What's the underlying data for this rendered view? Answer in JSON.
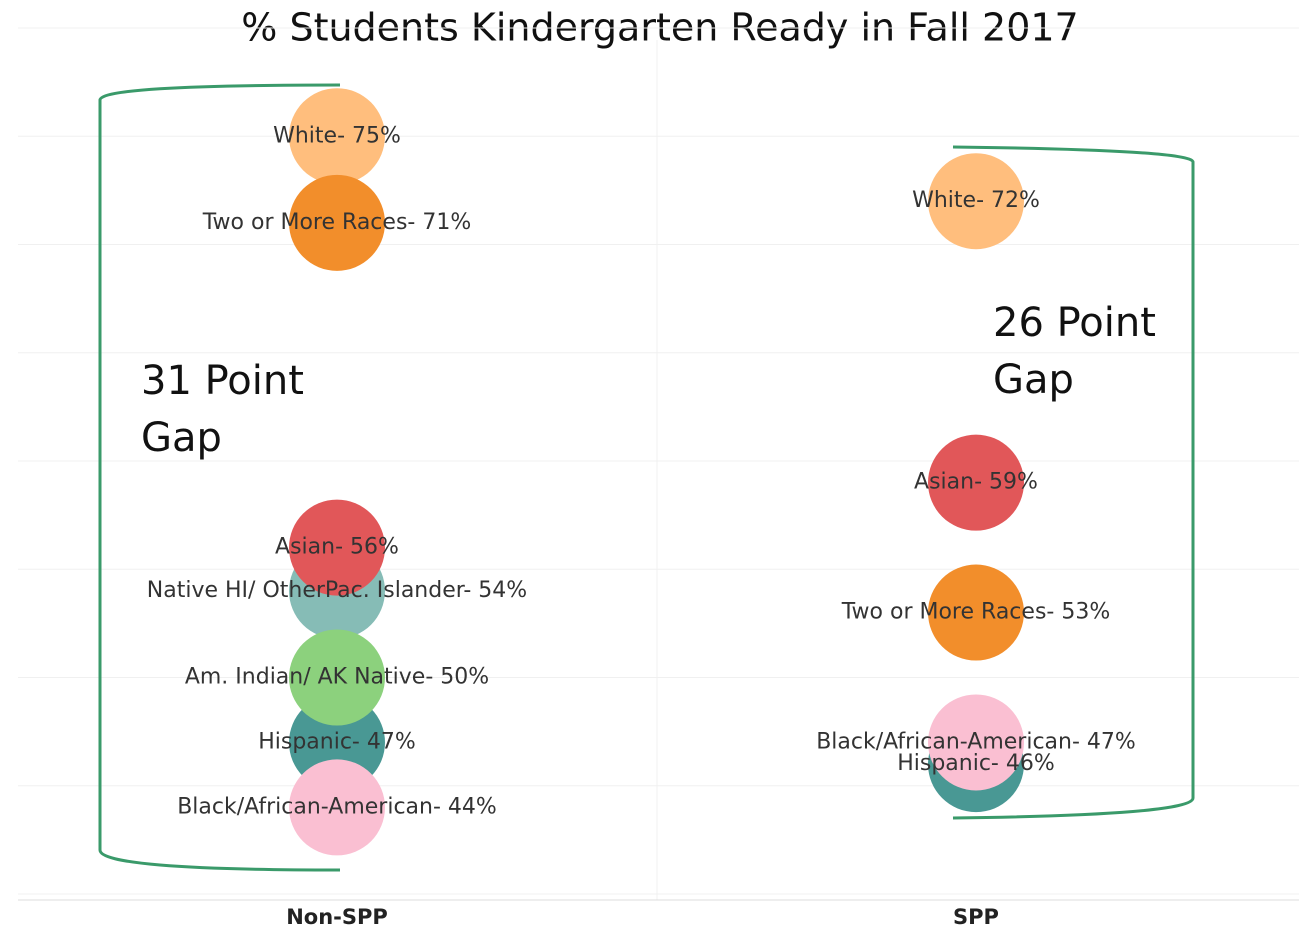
{
  "chart_data": {
    "type": "dot",
    "title": "% Students Kindergarten Ready in Fall 2017",
    "categories": [
      "Non-SPP",
      "SPP"
    ],
    "ylim": [
      40,
      80
    ],
    "yticks": [
      40,
      45,
      50,
      55,
      60,
      65,
      70,
      75,
      80
    ],
    "grid": true,
    "series": [
      {
        "color": "#86bcb6",
        "values": [
          54,
          null
        ],
        "value_labels": [
          "Native HI/ OtherPac. Islander- 54%",
          null
        ]
      },
      {
        "color": "#499894",
        "values": [
          47,
          46
        ],
        "value_labels": [
          "Hispanic- 47%",
          "Hispanic- 46%"
        ]
      },
      {
        "color": "#ffbe7d",
        "values": [
          75,
          72
        ],
        "value_labels": [
          "White- 75%",
          "White- 72%"
        ]
      },
      {
        "color": "#f28e2b",
        "values": [
          71,
          53
        ],
        "value_labels": [
          "Two or More Races- 71%",
          "Two or More Races- 53%"
        ]
      },
      {
        "color": "#e15759",
        "values": [
          56,
          59
        ],
        "value_labels": [
          "Asian- 56%",
          "Asian- 59%"
        ]
      },
      {
        "color": "#8cd17d",
        "values": [
          50,
          null
        ],
        "value_labels": [
          "Am. Indian/ AK Native- 50%",
          null
        ]
      },
      {
        "color": "#fabfd2",
        "values": [
          44,
          47
        ],
        "value_labels": [
          "Black/African-American- 44%",
          "Black/African-American- 47%"
        ]
      }
    ],
    "annotations": [
      {
        "lines": [
          "31 Point",
          "Gap"
        ]
      },
      {
        "lines": [
          "26 Point",
          "Gap"
        ]
      }
    ]
  }
}
